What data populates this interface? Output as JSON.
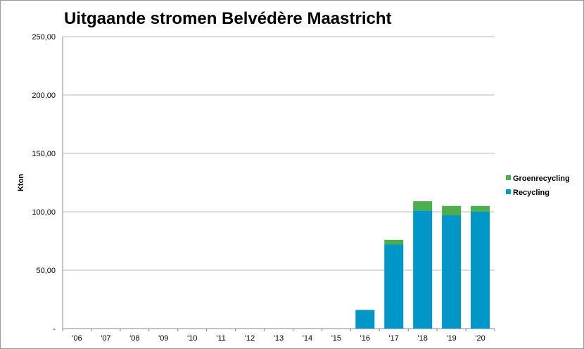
{
  "chart_data": {
    "type": "bar",
    "stacked": true,
    "title": "Uitgaande stromen Belvédère Maastricht",
    "xlabel": "",
    "ylabel": "Kton",
    "categories": [
      "'06",
      "'07",
      "'08",
      "'09",
      "'10",
      "'11",
      "'12",
      "'13",
      "'14",
      "'15",
      "'16",
      "'17",
      "'18",
      "'19",
      "'20"
    ],
    "series": [
      {
        "name": "Recycling",
        "color": "#0096c8",
        "values": [
          0,
          0,
          0,
          0,
          0,
          0,
          0,
          0,
          0,
          0,
          16,
          72,
          101,
          97,
          100
        ]
      },
      {
        "name": "Groenrecycling",
        "color": "#4bae4f",
        "values": [
          0,
          0,
          0,
          0,
          0,
          0,
          0,
          0,
          0,
          0,
          0,
          4,
          8,
          8,
          5
        ]
      }
    ],
    "ylim": [
      0,
      250
    ],
    "yticks": [
      0,
      50,
      100,
      150,
      200,
      250
    ],
    "ytick_labels": [
      "-",
      "50,00",
      "100,00",
      "150,00",
      "200,00",
      "250,00"
    ],
    "grid": true,
    "legend_position": "right",
    "legend_order": [
      "Groenrecycling",
      "Recycling"
    ]
  }
}
